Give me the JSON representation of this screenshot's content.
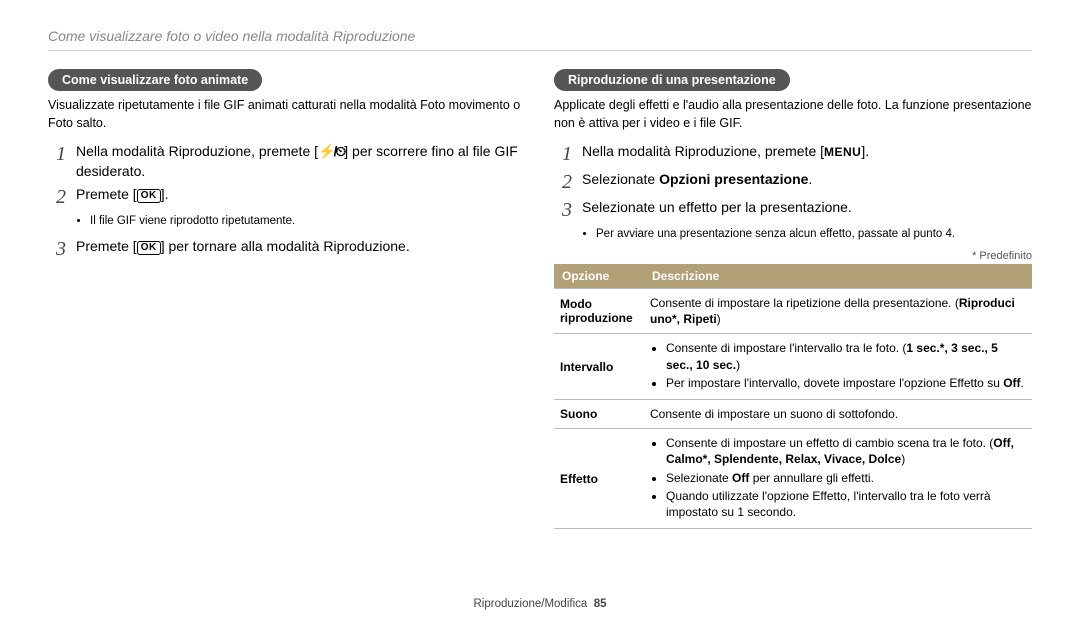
{
  "header": "Come visualizzare foto o video nella modalità Riproduzione",
  "footer": {
    "section": "Riproduzione/Modifica",
    "page": "85"
  },
  "left": {
    "pill": "Come visualizzare foto animate",
    "intro": "Visualizzate ripetutamente i file GIF animati catturati nella modalità Foto movimento o Foto salto.",
    "steps": [
      {
        "num": "1",
        "pre": "Nella modalità Riproduzione, premete [",
        "sym": "flash-timer",
        "post": "] per scorrere fino al file GIF desiderato."
      },
      {
        "num": "2",
        "pre": "Premete [",
        "sym": "ok",
        "post": "]."
      },
      {
        "num": "3",
        "pre": "Premete [",
        "sym": "ok",
        "post": "] per tornare alla modalità Riproduzione."
      }
    ],
    "sub2": "Il file GIF viene riprodotto ripetutamente."
  },
  "right": {
    "pill": "Riproduzione di una presentazione",
    "intro": "Applicate degli effetti e l'audio alla presentazione delle foto. La funzione presentazione non è attiva per i video e i file GIF.",
    "steps": [
      {
        "num": "1",
        "pre": "Nella modalità Riproduzione, premete [",
        "sym": "menu",
        "post": "]."
      },
      {
        "num": "2",
        "plain_pre": "Selezionate ",
        "strong": "Opzioni presentazione",
        "plain_post": "."
      },
      {
        "num": "3",
        "plain": "Selezionate un effetto per la presentazione."
      }
    ],
    "sub3": "Per avviare una presentazione senza alcun effetto, passate al punto 4.",
    "predef": "* Predefinito",
    "table": {
      "head_color": "#b2a077",
      "col1": "Opzione",
      "col2": "Descrizione",
      "rows": [
        {
          "opt": "Modo riproduzione",
          "desc_plain_pre": "Consente di impostare la ripetizione della presentazione. (",
          "desc_strong": "Riproduci uno*, Ripeti",
          "desc_plain_post": ")"
        },
        {
          "opt": "Intervallo",
          "bullets": [
            {
              "pre": "Consente di impostare l'intervallo tra le foto. (",
              "strong": "1 sec.*, 3 sec., 5 sec., 10 sec.",
              "post": ")"
            },
            {
              "pre": "Per impostare l'intervallo, dovete impostare l'opzione Effetto su ",
              "strong": "Off",
              "post": "."
            }
          ]
        },
        {
          "opt": "Suono",
          "desc_plain": "Consente di impostare un suono di sottofondo."
        },
        {
          "opt": "Effetto",
          "bullets": [
            {
              "pre": "Consente di impostare un effetto di cambio scena tra le foto. (",
              "strong": "Off, Calmo*, Splendente, Relax, Vivace, Dolce",
              "post": ")"
            },
            {
              "pre": "Selezionate ",
              "strong": "Off",
              "post": " per annullare gli effetti."
            },
            {
              "pre": "Quando utilizzate l'opzione Effetto, l'intervallo tra le foto verrà impostato su 1 secondo.",
              "strong": "",
              "post": ""
            }
          ]
        }
      ]
    }
  }
}
